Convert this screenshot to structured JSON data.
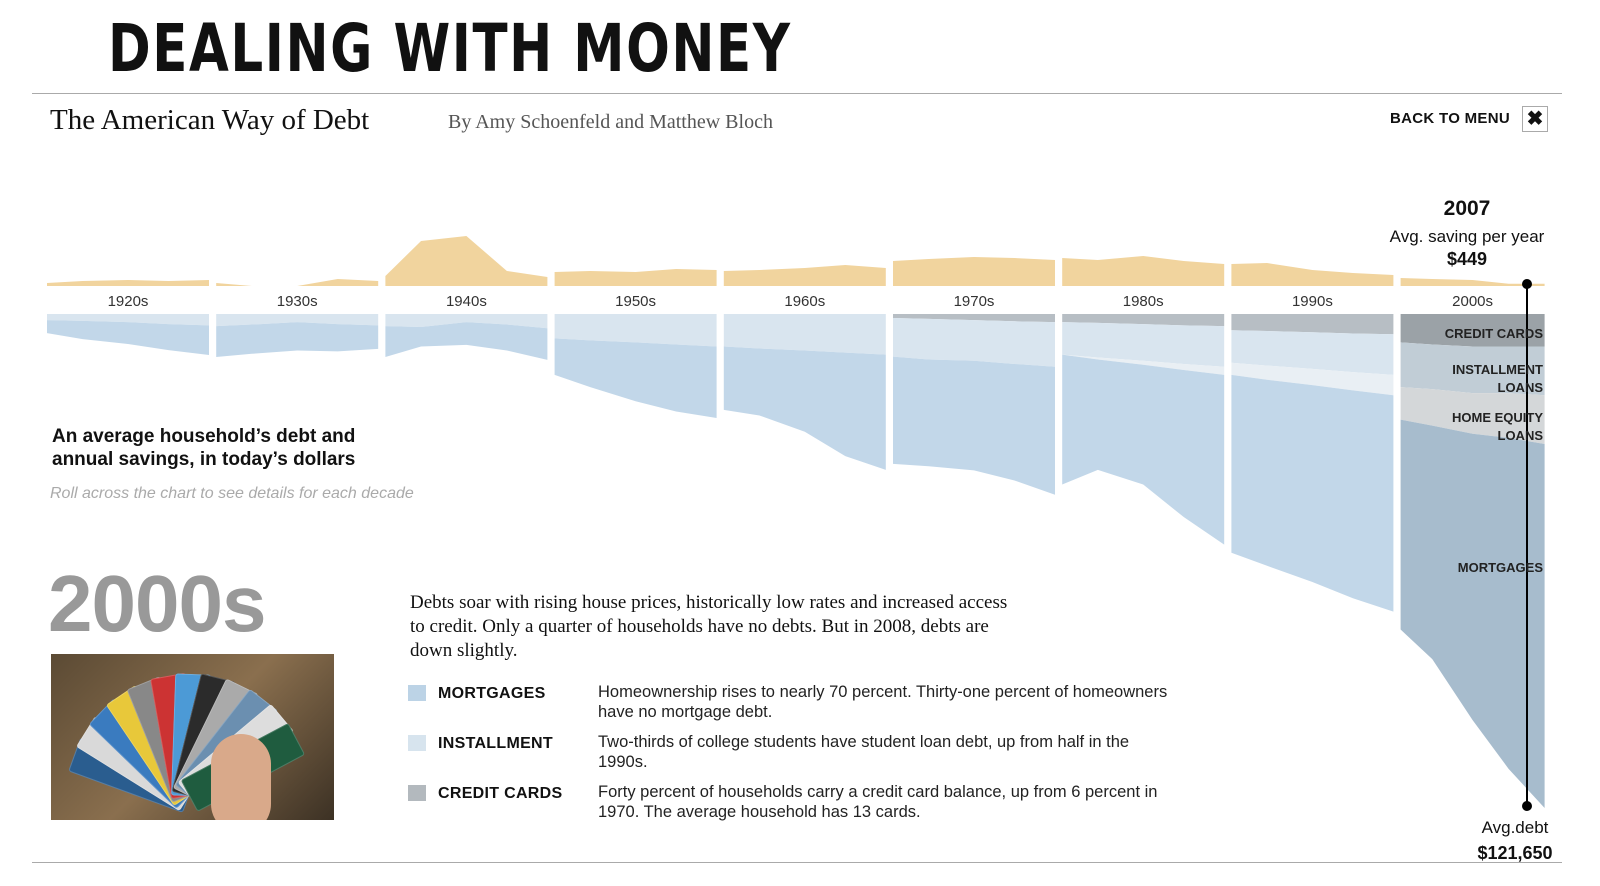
{
  "slide_title": "DEALING WITH MONEY",
  "header": {
    "title": "The American Way of Debt",
    "byline": "By Amy Schoenfeld and Matthew Bloch",
    "back_label": "BACK TO MENU",
    "close_icon": "close-icon"
  },
  "caption": {
    "line1": "An average household’s debt and",
    "line2": "annual savings, in today’s dollars",
    "hint": "Roll across the chart to see details for each decade"
  },
  "readout": {
    "year": "2007",
    "saving_label": "Avg. saving per year",
    "saving_value": "$449",
    "debt_label": "Avg.debt",
    "debt_value": "$121,650"
  },
  "layer_labels": {
    "credit_cards": "CREDIT CARDS",
    "installment_1": "INSTALLMENT",
    "installment_2": "LOANS",
    "home_equity_1": "HOME EQUITY",
    "home_equity_2": "LOANS",
    "mortgages": "MORTGAGES"
  },
  "detail": {
    "decade": "2000s",
    "description": "Debts soar with rising house prices, historically low rates and increased access to credit. Only a quarter of households have no debts. But in 2008, debts are down slightly.",
    "legend": [
      {
        "name": "MORTGAGES",
        "color": "#bcd3e6",
        "text": "Homeownership rises to nearly 70 percent. Thirty-one percent of homeowners have no mortgage debt."
      },
      {
        "name": "INSTALLMENT",
        "color": "#d7e4ee",
        "text": "Two-thirds of college students have student loan debt, up from half in the 1990s."
      },
      {
        "name": "CREDIT CARDS",
        "color": "#b3b9be",
        "text": "Forty percent of households carry a credit card balance, up from 6 percent in 1970. The average household has 13 cards."
      }
    ]
  },
  "colors": {
    "savings": "#f1d49e",
    "mortgages": "#c2d7e9",
    "installment": "#d9e5ef",
    "home_equity": "#e9eff4",
    "credit_cards": "#b7bec4",
    "sel_mortgages": "#a7bccd",
    "sel_installment": "#c1cdd6",
    "sel_home_equity": "#d4d7d9",
    "sel_credit_cards": "#9ba2a7"
  },
  "chart_data": {
    "type": "area",
    "units": "thousands of today's dollars",
    "selected_decade": "2000s",
    "categories": [
      "1920s",
      "1930s",
      "1940s",
      "1950s",
      "1960s",
      "1970s",
      "1980s",
      "1990s",
      "2000s"
    ],
    "savings": [
      [
        0.6,
        1,
        1.2,
        1,
        1.2
      ],
      [
        0.6,
        0,
        0,
        1.4,
        1
      ],
      [
        2,
        9,
        10,
        3,
        1.8
      ],
      [
        2.8,
        3,
        2.8,
        3.4,
        3.2
      ],
      [
        3,
        3.2,
        3.6,
        4.2,
        3.6
      ],
      [
        5,
        5.4,
        5.8,
        5.6,
        5.2
      ],
      [
        5.6,
        5.2,
        6,
        5,
        4.4
      ],
      [
        4.4,
        4.6,
        3.2,
        2.6,
        2.2
      ],
      [
        1.6,
        1.4,
        1.2,
        0.45,
        0.45
      ]
    ],
    "debt_series": [
      {
        "name": "CREDIT CARDS",
        "values": [
          [
            0,
            0,
            0,
            0,
            0
          ],
          [
            0,
            0,
            0,
            0,
            0
          ],
          [
            0,
            0,
            0,
            0,
            0
          ],
          [
            0,
            0,
            0,
            0,
            0
          ],
          [
            0,
            0,
            0,
            0,
            0
          ],
          [
            1,
            1.2,
            1.5,
            1.8,
            2
          ],
          [
            2,
            2.2,
            2.5,
            2.8,
            3
          ],
          [
            4,
            4.2,
            4.5,
            4.8,
            5
          ],
          [
            7,
            7.5,
            8,
            8,
            8
          ]
        ]
      },
      {
        "name": "INSTALLMENT",
        "values": [
          [
            1.5,
            1.7,
            2,
            2.5,
            2.8
          ],
          [
            3,
            2.6,
            2,
            2.5,
            2.8
          ],
          [
            3,
            3.2,
            2,
            2.6,
            3.5
          ],
          [
            6,
            6.5,
            7,
            7.5,
            8
          ],
          [
            8,
            8.5,
            9,
            9.5,
            10
          ],
          [
            9.5,
            10,
            10,
            10.5,
            11
          ],
          [
            8,
            8.5,
            9,
            9.5,
            10
          ],
          [
            8,
            8.5,
            9,
            9.5,
            10
          ],
          [
            11,
            11,
            11.5,
            11.5,
            12
          ]
        ]
      },
      {
        "name": "HOME EQUITY LOANS",
        "values": [
          [
            0,
            0,
            0,
            0,
            0
          ],
          [
            0,
            0,
            0,
            0,
            0
          ],
          [
            0,
            0,
            0,
            0,
            0
          ],
          [
            0,
            0,
            0,
            0,
            0
          ],
          [
            0,
            0,
            0,
            0,
            0
          ],
          [
            0,
            0,
            0,
            0,
            0
          ],
          [
            0,
            0.5,
            1,
            1.5,
            2
          ],
          [
            3,
            3.5,
            4,
            4.5,
            5
          ],
          [
            8,
            9,
            10,
            11,
            12
          ]
        ]
      },
      {
        "name": "MORTGAGES",
        "values": [
          [
            3.2,
            4.5,
            5.4,
            6.4,
            7.3
          ],
          [
            7.6,
            7.2,
            7,
            6.7,
            5.8
          ],
          [
            7.6,
            4.8,
            5.6,
            6.4,
            7.8
          ],
          [
            9,
            11.5,
            14.5,
            16.5,
            17.6
          ],
          [
            15.6,
            16.5,
            20,
            25.5,
            28.4
          ],
          [
            26.4,
            26.3,
            27,
            28.7,
            31.5
          ],
          [
            32,
            27.2,
            29.5,
            36.2,
            41.8
          ],
          [
            43.8,
            45.8,
            48.5,
            51.2,
            53.3
          ],
          [
            51.7,
            57.5,
            70.5,
            81.5,
            89.65
          ]
        ]
      }
    ]
  }
}
